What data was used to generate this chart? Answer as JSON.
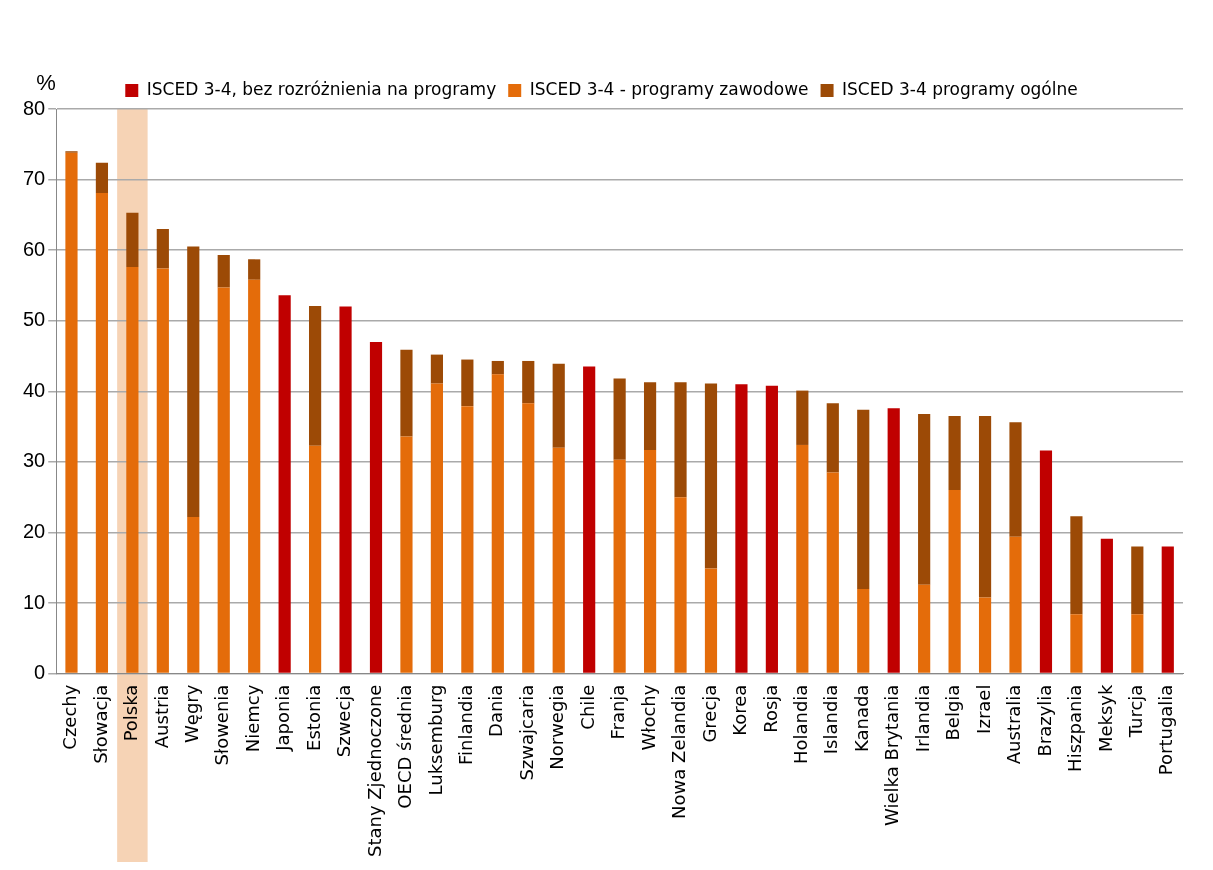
{
  "chart_data": {
    "type": "bar",
    "stacked": true,
    "ylabel": "%",
    "legend": "top",
    "categories": [
      "Czechy",
      "Słowacja",
      "Polska",
      "Austria",
      "Węgry",
      "Słowenia",
      "Niemcy",
      "Japonia",
      "Estonia",
      "Szwecja",
      "Stany Zjednoczone",
      "OECD średnia",
      "Luksemburg",
      "Finlandia",
      "Dania",
      "Szwajcaria",
      "Norwegia",
      "Chile",
      "Franja",
      "Włochy",
      "Nowa Zelandia",
      "Grecja",
      "Korea",
      "Rosja",
      "Holandia",
      "Islandia",
      "Kanada",
      "Wielka Brytania",
      "Irlandia",
      "Belgia",
      "Izrael",
      "Australia",
      "Brazylia",
      "Hiszpania",
      "Meksyk",
      "Turcja",
      "Portugalia"
    ],
    "series": [
      {
        "name": "ISCED 3-4, bez rozróżnienia na programy",
        "color": "#c00000",
        "values": [
          null,
          null,
          null,
          null,
          null,
          null,
          null,
          53.6,
          null,
          52,
          47,
          null,
          null,
          null,
          null,
          null,
          null,
          43.5,
          null,
          null,
          null,
          null,
          41,
          40.8,
          null,
          null,
          null,
          37.6,
          null,
          null,
          null,
          null,
          31.6,
          null,
          19.1,
          null,
          18
        ]
      },
      {
        "name": "ISCED 3-4 - programy zawodowe",
        "color": "#e46c0a",
        "values": [
          73.8,
          68.1,
          57.6,
          57.4,
          22.2,
          54.7,
          55.8,
          null,
          32.3,
          null,
          null,
          33.6,
          41.1,
          37.9,
          42.4,
          38.3,
          32,
          null,
          30.3,
          31.7,
          25,
          14.9,
          null,
          null,
          32.4,
          28.5,
          12,
          null,
          12.6,
          26,
          10.8,
          19.4,
          null,
          8.4,
          null,
          8.4,
          null
        ]
      },
      {
        "name": "ISCED 3-4 programy ogólne",
        "color": "#9c4a06",
        "values": [
          0.2,
          4.3,
          7.7,
          5.6,
          38.3,
          4.6,
          2.9,
          null,
          19.8,
          null,
          null,
          12.3,
          4.1,
          6.6,
          1.9,
          6,
          11.9,
          null,
          11.5,
          9.6,
          16.3,
          26.2,
          null,
          null,
          7.7,
          9.8,
          25.4,
          null,
          24.2,
          10.5,
          25.7,
          16.2,
          null,
          13.9,
          null,
          9.6,
          null
        ]
      }
    ],
    "bands": [
      {
        "axis": "x",
        "from": "Polska",
        "to": "Polska",
        "color": "#f6d3b5"
      }
    ],
    "ylim": [
      0,
      80
    ],
    "yticks": [
      0,
      10,
      20,
      30,
      40,
      50,
      60,
      70,
      80
    ],
    "grid": "y"
  }
}
